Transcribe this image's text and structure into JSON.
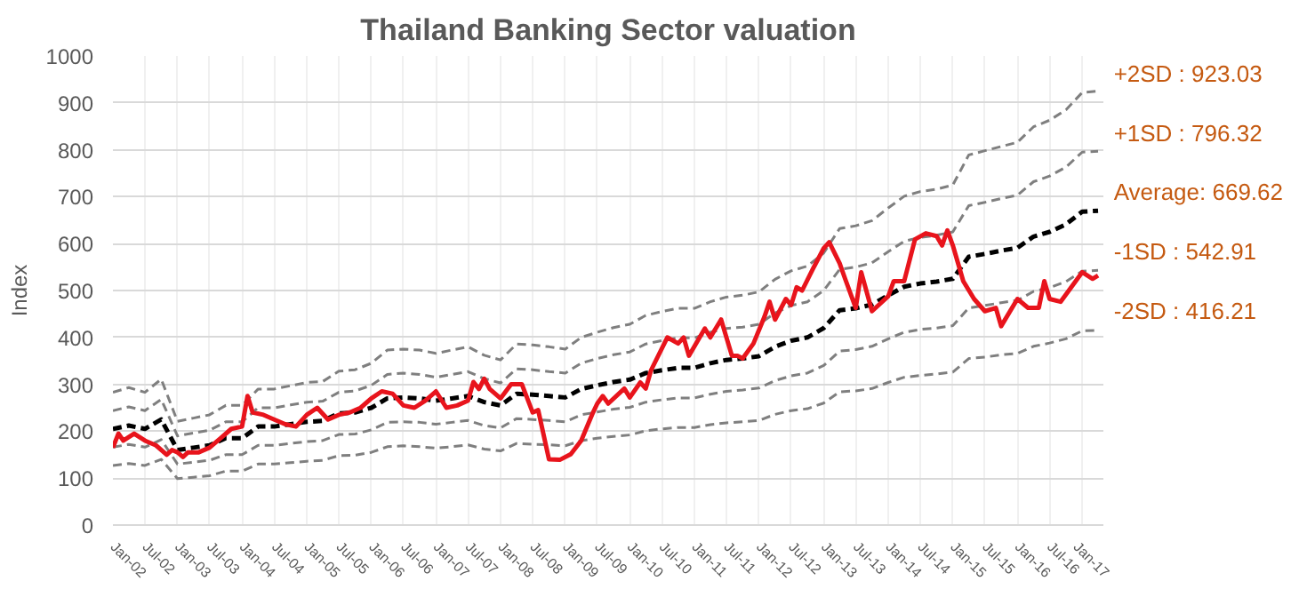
{
  "chart_data": {
    "type": "line",
    "title": "Thailand Banking Sector valuation",
    "ylabel": "Index",
    "ylim": [
      0,
      1000
    ],
    "yticks": [
      0,
      100,
      200,
      300,
      400,
      500,
      600,
      700,
      800,
      900,
      1000
    ],
    "xlim": [
      "2002-01",
      "2017-05"
    ],
    "xticks": [
      {
        "value": "2002-01",
        "label": "Jan-02"
      },
      {
        "value": "2002-07",
        "label": "Jul-02"
      },
      {
        "value": "2003-01",
        "label": "Jan-03"
      },
      {
        "value": "2003-07",
        "label": "Jul-03"
      },
      {
        "value": "2004-01",
        "label": "Jan-04"
      },
      {
        "value": "2004-07",
        "label": "Jul-04"
      },
      {
        "value": "2005-01",
        "label": "Jan-05"
      },
      {
        "value": "2005-07",
        "label": "Jul-05"
      },
      {
        "value": "2006-01",
        "label": "Jan-06"
      },
      {
        "value": "2006-07",
        "label": "Jul-06"
      },
      {
        "value": "2007-01",
        "label": "Jan-07"
      },
      {
        "value": "2007-07",
        "label": "Jul-07"
      },
      {
        "value": "2008-01",
        "label": "Jan-08"
      },
      {
        "value": "2008-07",
        "label": "Jul-08"
      },
      {
        "value": "2009-01",
        "label": "Jan-09"
      },
      {
        "value": "2009-07",
        "label": "Jul-09"
      },
      {
        "value": "2010-01",
        "label": "Jan-10"
      },
      {
        "value": "2010-07",
        "label": "Jul-10"
      },
      {
        "value": "2011-01",
        "label": "Jan-11"
      },
      {
        "value": "2011-07",
        "label": "Jul-11"
      },
      {
        "value": "2012-01",
        "label": "Jan-12"
      },
      {
        "value": "2012-07",
        "label": "Jul-12"
      },
      {
        "value": "2013-01",
        "label": "Jan-13"
      },
      {
        "value": "2013-07",
        "label": "Jul-13"
      },
      {
        "value": "2014-01",
        "label": "Jan-14"
      },
      {
        "value": "2014-07",
        "label": "Jul-14"
      },
      {
        "value": "2015-01",
        "label": "Jan-15"
      },
      {
        "value": "2015-07",
        "label": "Jul-15"
      },
      {
        "value": "2016-01",
        "label": "Jan-16"
      },
      {
        "value": "2016-07",
        "label": "Jul-16"
      },
      {
        "value": "2017-01",
        "label": "Jan-17"
      }
    ],
    "grid": true,
    "x": [
      "2002-01",
      "2002-04",
      "2002-07",
      "2002-10",
      "2003-01",
      "2003-04",
      "2003-07",
      "2003-10",
      "2004-01",
      "2004-04",
      "2004-07",
      "2004-10",
      "2005-01",
      "2005-04",
      "2005-07",
      "2005-10",
      "2006-01",
      "2006-04",
      "2006-07",
      "2006-10",
      "2007-01",
      "2007-04",
      "2007-07",
      "2007-10",
      "2008-01",
      "2008-04",
      "2008-07",
      "2008-10",
      "2009-01",
      "2009-04",
      "2009-07",
      "2009-10",
      "2010-01",
      "2010-04",
      "2010-07",
      "2010-10",
      "2011-01",
      "2011-04",
      "2011-07",
      "2011-10",
      "2012-01",
      "2012-04",
      "2012-07",
      "2012-10",
      "2013-01",
      "2013-04",
      "2013-07",
      "2013-10",
      "2014-01",
      "2014-04",
      "2014-07",
      "2014-10",
      "2015-01",
      "2015-04",
      "2015-07",
      "2015-10",
      "2016-01",
      "2016-04",
      "2016-07",
      "2016-10",
      "2017-01",
      "2017-04"
    ],
    "series": [
      {
        "color": "#7f7f7f",
        "line_style": "dashed",
        "values": [
          283,
          293,
          283,
          311,
          221,
          228,
          235,
          255,
          255,
          290,
          290,
          297,
          304,
          306,
          328,
          331,
          345,
          373,
          375,
          373,
          366,
          373,
          380,
          362,
          352,
          386,
          384,
          380,
          375,
          400,
          411,
          421,
          428,
          447,
          455,
          462,
          462,
          476,
          486,
          490,
          497,
          524,
          542,
          552,
          580,
          632,
          638,
          649,
          676,
          701,
          711,
          716,
          725,
          789,
          798,
          807,
          816,
          849,
          863,
          885,
          922,
          925
        ]
      },
      {
        "color": "#7f7f7f",
        "line_style": "dashed",
        "values": [
          244,
          252,
          244,
          268,
          190,
          196,
          202,
          220,
          220,
          250,
          250,
          256,
          262,
          264,
          283,
          286,
          298,
          321,
          324,
          321,
          315,
          321,
          327,
          312,
          303,
          333,
          331,
          327,
          324,
          345,
          355,
          363,
          369,
          386,
          393,
          399,
          399,
          411,
          419,
          422,
          428,
          452,
          468,
          476,
          500,
          545,
          550,
          559,
          583,
          605,
          613,
          618,
          625,
          681,
          688,
          696,
          703,
          732,
          744,
          763,
          795,
          797
        ]
      },
      {
        "color": "#000000",
        "line_style": "dashed",
        "values": [
          205,
          212,
          205,
          225,
          160,
          165,
          170,
          185,
          185,
          210,
          210,
          215,
          220,
          222,
          238,
          240,
          250,
          270,
          272,
          270,
          265,
          270,
          275,
          262,
          255,
          280,
          278,
          275,
          272,
          290,
          298,
          305,
          310,
          324,
          330,
          335,
          335,
          345,
          352,
          355,
          360,
          380,
          393,
          400,
          420,
          458,
          462,
          470,
          490,
          508,
          515,
          519,
          525,
          572,
          578,
          585,
          591,
          615,
          625,
          641,
          668,
          670
        ]
      },
      {
        "color": "#7f7f7f",
        "line_style": "dashed",
        "values": [
          166,
          172,
          166,
          182,
          130,
          134,
          138,
          150,
          150,
          170,
          170,
          174,
          178,
          180,
          193,
          194,
          203,
          219,
          220,
          219,
          215,
          219,
          223,
          212,
          207,
          227,
          225,
          223,
          220,
          235,
          241,
          247,
          251,
          262,
          267,
          271,
          271,
          279,
          285,
          288,
          292,
          308,
          318,
          324,
          340,
          371,
          374,
          381,
          397,
          411,
          417,
          420,
          425,
          463,
          468,
          474,
          479,
          498,
          506,
          519,
          541,
          543
        ]
      },
      {
        "color": "#7f7f7f",
        "line_style": "dashed",
        "values": [
          127,
          131,
          127,
          140,
          99,
          102,
          105,
          115,
          115,
          130,
          130,
          133,
          136,
          138,
          148,
          149,
          155,
          167,
          169,
          167,
          164,
          167,
          171,
          162,
          158,
          174,
          172,
          171,
          169,
          180,
          185,
          189,
          192,
          201,
          205,
          208,
          208,
          214,
          218,
          220,
          223,
          236,
          244,
          248,
          260,
          284,
          286,
          291,
          304,
          315,
          319,
          322,
          326,
          355,
          358,
          363,
          366,
          381,
          388,
          397,
          414,
          415
        ]
      },
      {
        "color": "#e8141c",
        "line_style": "solid",
        "x": [
          "2002-01",
          "2002-02",
          "2002-03",
          "2002-05",
          "2002-07",
          "2002-09",
          "2002-11",
          "2002-12",
          "2003-01",
          "2003-02",
          "2003-03",
          "2003-05",
          "2003-07",
          "2003-09",
          "2003-11",
          "2004-01",
          "2004-02",
          "2004-03",
          "2004-05",
          "2004-07",
          "2004-09",
          "2004-11",
          "2005-01",
          "2005-03",
          "2005-05",
          "2005-07",
          "2005-09",
          "2005-11",
          "2006-01",
          "2006-03",
          "2006-05",
          "2006-07",
          "2006-09",
          "2006-11",
          "2007-01",
          "2007-03",
          "2007-05",
          "2007-07",
          "2007-08",
          "2007-09",
          "2007-10",
          "2007-11",
          "2008-01",
          "2008-03",
          "2008-05",
          "2008-07",
          "2008-08",
          "2008-10",
          "2008-12",
          "2009-02",
          "2009-04",
          "2009-06",
          "2009-07",
          "2009-08",
          "2009-09",
          "2009-12",
          "2010-01",
          "2010-03",
          "2010-04",
          "2010-05",
          "2010-08",
          "2010-10",
          "2010-11",
          "2010-12",
          "2011-03",
          "2011-04",
          "2011-06",
          "2011-08",
          "2011-09",
          "2011-10",
          "2011-12",
          "2012-02",
          "2012-03",
          "2012-04",
          "2012-06",
          "2012-07",
          "2012-08",
          "2012-09",
          "2012-11",
          "2013-01",
          "2013-02",
          "2013-04",
          "2013-05",
          "2013-07",
          "2013-08",
          "2013-10",
          "2014-01",
          "2014-02",
          "2014-04",
          "2014-06",
          "2014-08",
          "2014-10",
          "2014-11",
          "2014-12",
          "2015-01",
          "2015-03",
          "2015-05",
          "2015-07",
          "2015-09",
          "2015-10",
          "2016-01",
          "2016-03",
          "2016-05",
          "2016-06",
          "2016-07",
          "2016-09",
          "2017-01",
          "2017-03",
          "2017-04"
        ],
        "values": [
          165,
          195,
          180,
          195,
          180,
          170,
          150,
          160,
          155,
          145,
          155,
          155,
          165,
          185,
          205,
          210,
          275,
          240,
          235,
          225,
          215,
          210,
          235,
          250,
          225,
          235,
          240,
          250,
          270,
          285,
          280,
          255,
          250,
          265,
          285,
          250,
          255,
          265,
          305,
          290,
          312,
          290,
          270,
          300,
          300,
          240,
          245,
          140,
          139,
          151,
          180,
          235,
          259,
          275,
          259,
          291,
          272,
          304,
          291,
          330,
          400,
          387,
          400,
          361,
          419,
          400,
          438,
          361,
          361,
          355,
          387,
          444,
          476,
          438,
          482,
          469,
          507,
          500,
          546,
          590,
          603,
          558,
          526,
          463,
          539,
          456,
          488,
          520,
          520,
          609,
          622,
          616,
          596,
          628,
          596,
          520,
          482,
          456,
          463,
          424,
          482,
          463,
          463,
          520,
          482,
          476,
          539,
          525,
          532
        ]
      }
    ],
    "annotations": [
      {
        "text": "+2SD : 923.03",
        "x": "2017-04",
        "y": 923.03
      },
      {
        "text": "+1SD : 796.32",
        "x": "2017-04",
        "y": 796.32
      },
      {
        "text": "Average: 669.62",
        "x": "2017-04",
        "y": 669.62
      },
      {
        "text": "-1SD : 542.91",
        "x": "2017-04",
        "y": 542.91
      },
      {
        "text": "-2SD : 416.21",
        "x": "2017-04",
        "y": 416.21
      }
    ]
  }
}
